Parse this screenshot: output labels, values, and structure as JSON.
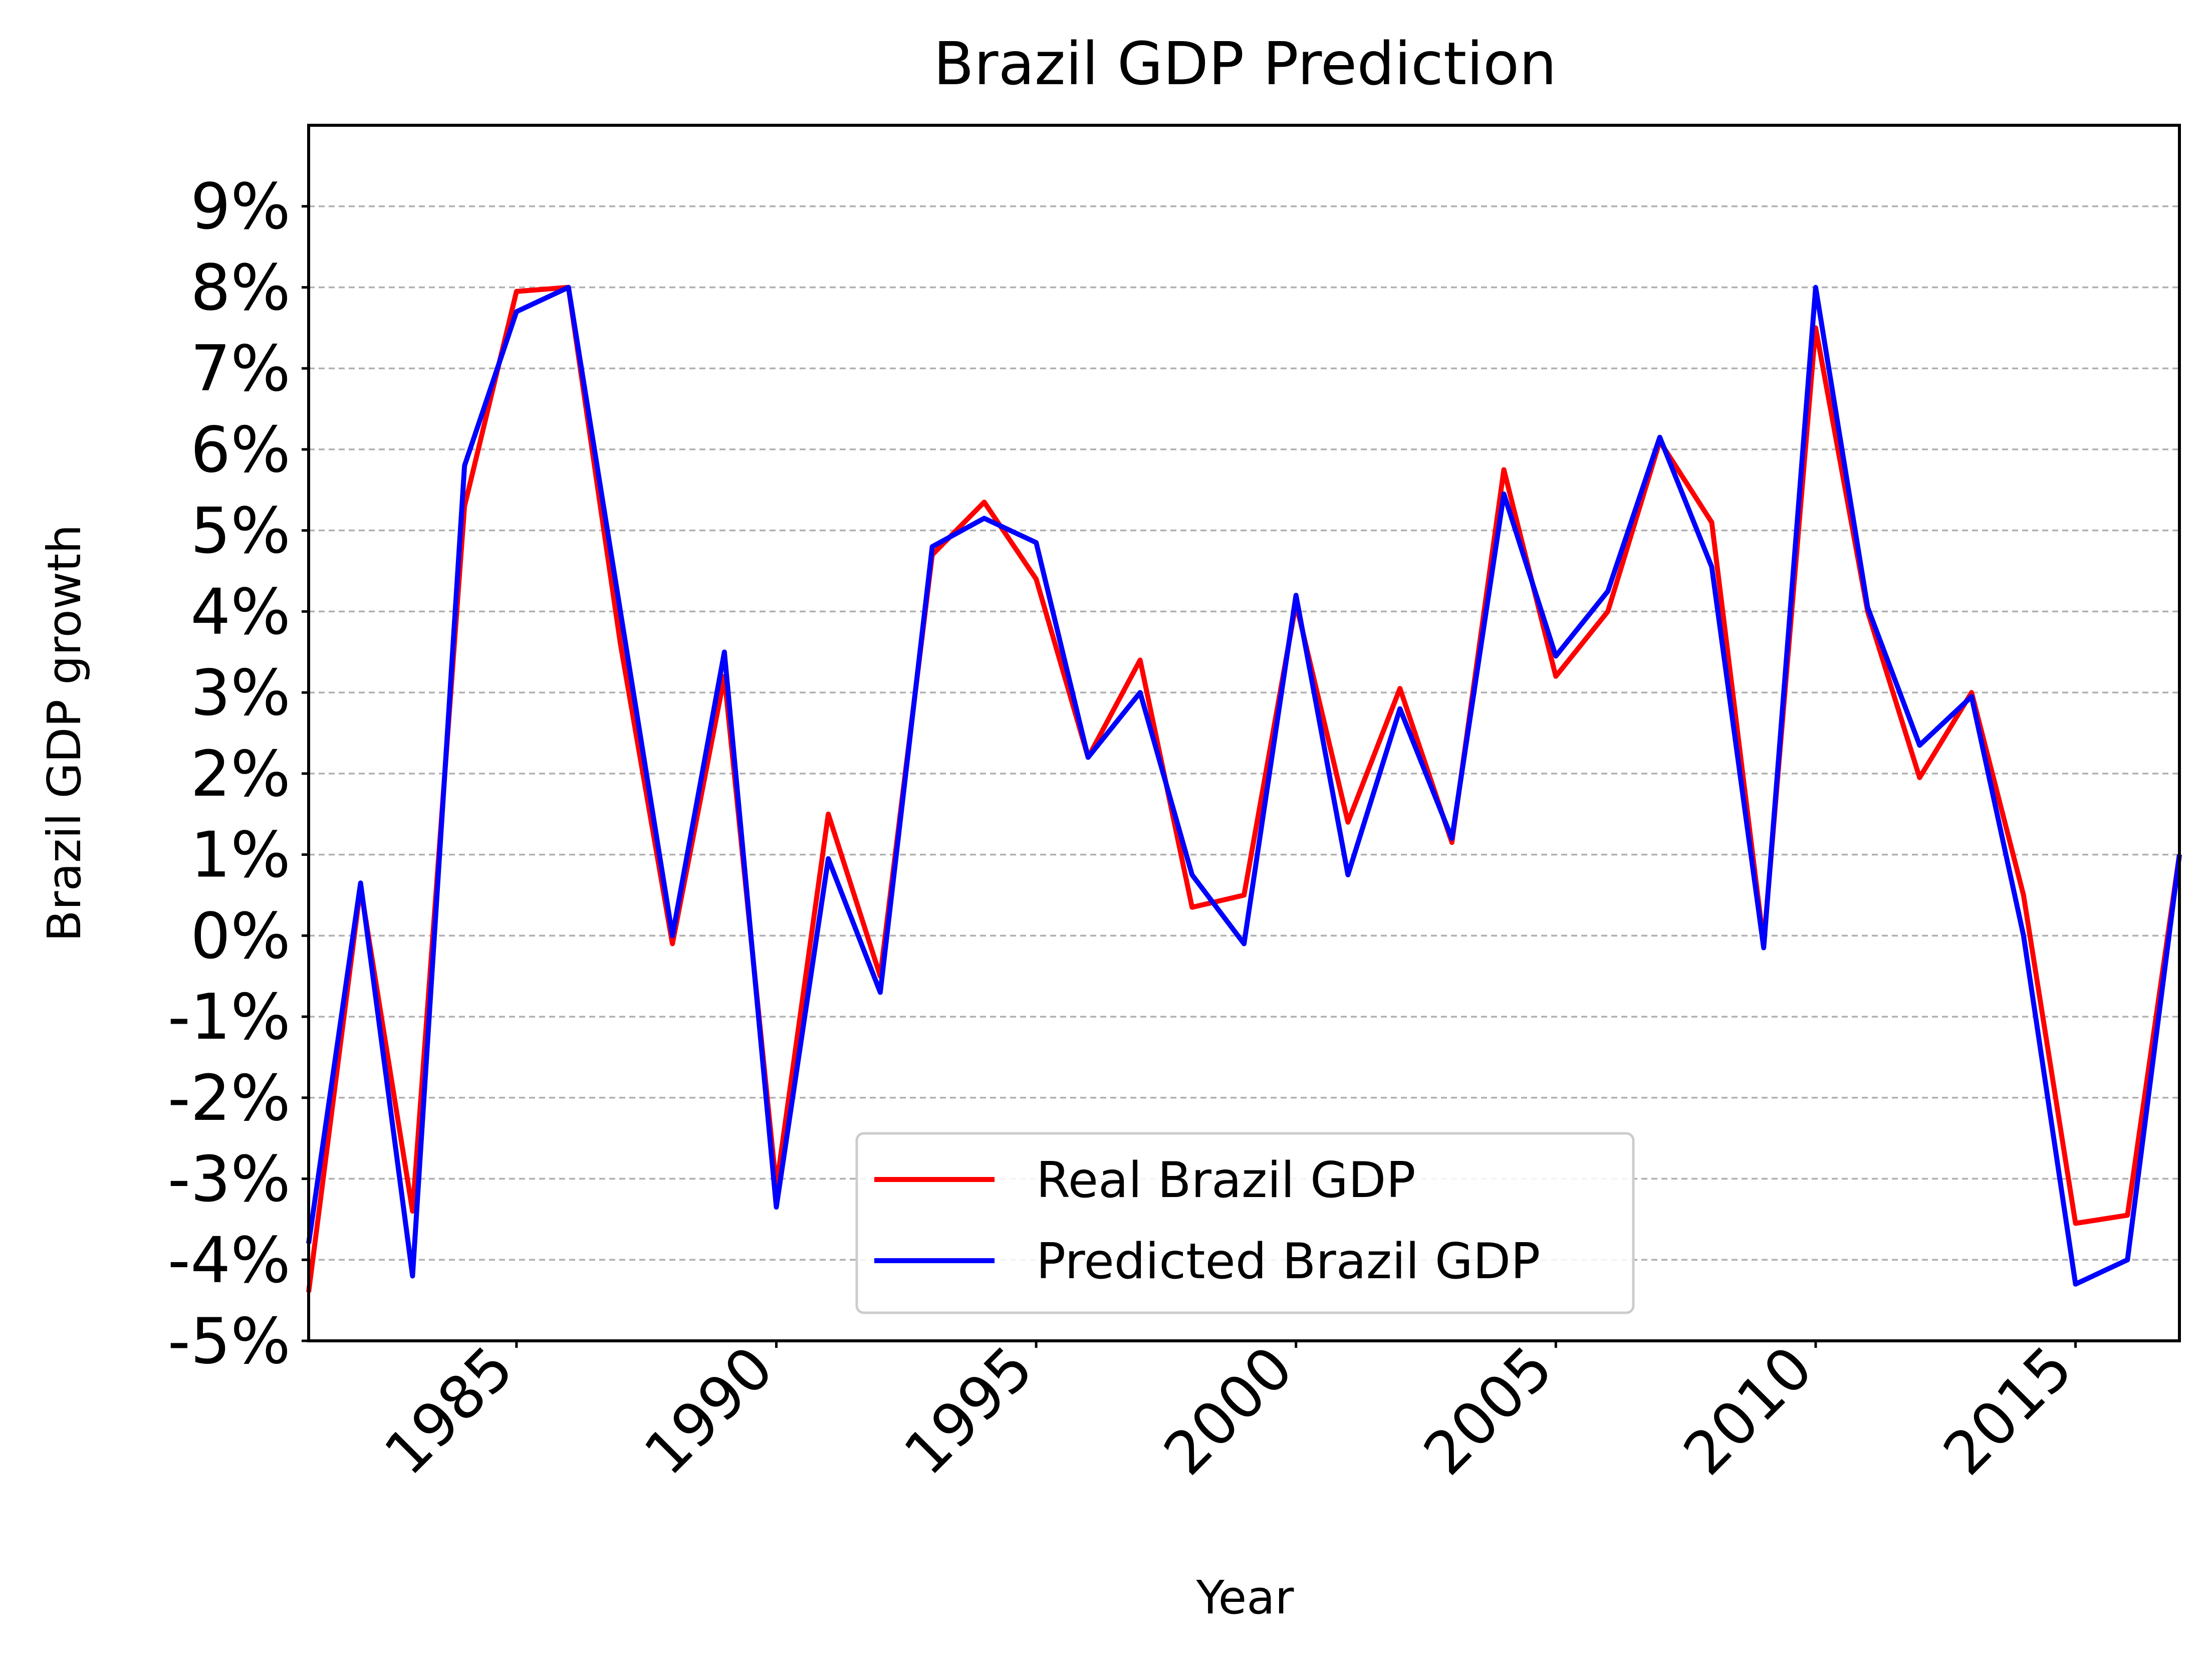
{
  "chart_data": {
    "type": "line",
    "title": "Brazil GDP Prediction",
    "xlabel": "Year",
    "ylabel": "Brazil GDP growth",
    "xlim": [
      1981,
      2017
    ],
    "ylim": [
      -5,
      10
    ],
    "grid": "y-dashed",
    "legend_position": "bottom-center",
    "x_ticks": [
      1985,
      1990,
      1995,
      2000,
      2005,
      2010,
      2015
    ],
    "x_tick_labels": [
      "1985",
      "1990",
      "1995",
      "2000",
      "2005",
      "2010",
      "2015"
    ],
    "y_ticks": [
      -5,
      -4,
      -3,
      -2,
      -1,
      0,
      1,
      2,
      3,
      4,
      5,
      6,
      7,
      8,
      9
    ],
    "y_tick_labels": [
      "-5%",
      "-4%",
      "-3%",
      "-2%",
      "-1%",
      "0%",
      "1%",
      "2%",
      "3%",
      "4%",
      "5%",
      "6%",
      "7%",
      "8%",
      "9%"
    ],
    "x": [
      1981,
      1982,
      1983,
      1984,
      1985,
      1986,
      1987,
      1988,
      1989,
      1990,
      1991,
      1992,
      1993,
      1994,
      1995,
      1996,
      1997,
      1998,
      1999,
      2000,
      2001,
      2002,
      2003,
      2004,
      2005,
      2006,
      2007,
      2008,
      2009,
      2010,
      2011,
      2012,
      2013,
      2014,
      2015,
      2016,
      2017
    ],
    "series": [
      {
        "name": "Real Brazil GDP",
        "color": "#ff0000",
        "values": [
          -4.4,
          0.6,
          -3.4,
          5.3,
          7.95,
          8.0,
          3.6,
          -0.1,
          3.2,
          -3.1,
          1.5,
          -0.5,
          4.7,
          5.35,
          4.4,
          2.2,
          3.4,
          0.35,
          0.5,
          4.1,
          1.4,
          3.05,
          1.15,
          5.75,
          3.2,
          4.0,
          6.1,
          5.1,
          -0.1,
          7.5,
          4.0,
          1.95,
          3.0,
          0.5,
          -3.55,
          -3.45,
          1.0
        ]
      },
      {
        "name": "Predicted Brazil GDP",
        "color": "#0000ff",
        "values": [
          -3.8,
          0.65,
          -4.2,
          5.8,
          7.7,
          8.0,
          4.0,
          0.0,
          3.5,
          -3.35,
          0.95,
          -0.7,
          4.8,
          5.15,
          4.85,
          2.2,
          3.0,
          0.75,
          -0.1,
          4.2,
          0.75,
          2.8,
          1.2,
          5.45,
          3.45,
          4.25,
          6.15,
          4.55,
          -0.15,
          8.0,
          4.05,
          2.35,
          2.95,
          0.0,
          -4.3,
          -4.0,
          1.0
        ]
      }
    ]
  }
}
